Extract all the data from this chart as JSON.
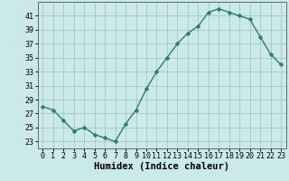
{
  "x": [
    0,
    1,
    2,
    3,
    4,
    5,
    6,
    7,
    8,
    9,
    10,
    11,
    12,
    13,
    14,
    15,
    16,
    17,
    18,
    19,
    20,
    21,
    22,
    23
  ],
  "y": [
    28,
    27.5,
    26,
    24.5,
    25,
    24,
    23.5,
    23,
    25.5,
    27.5,
    30.5,
    33,
    35,
    37,
    38.5,
    39.5,
    41.5,
    42,
    41.5,
    41,
    40.5,
    38,
    35.5,
    34
  ],
  "line_color": "#2e7d6e",
  "marker_color": "#2e7d6e",
  "bg_color": "#cce9e9",
  "grid_color": "#a0c8c8",
  "xlabel": "Humidex (Indice chaleur)",
  "ylim": [
    22,
    43
  ],
  "xlim": [
    -0.5,
    23.5
  ],
  "yticks": [
    23,
    25,
    27,
    29,
    31,
    33,
    35,
    37,
    39,
    41
  ],
  "xticks": [
    0,
    1,
    2,
    3,
    4,
    5,
    6,
    7,
    8,
    9,
    10,
    11,
    12,
    13,
    14,
    15,
    16,
    17,
    18,
    19,
    20,
    21,
    22,
    23
  ],
  "tick_fontsize": 6,
  "xlabel_fontsize": 7.5,
  "marker_size": 2.5,
  "line_width": 1.0
}
